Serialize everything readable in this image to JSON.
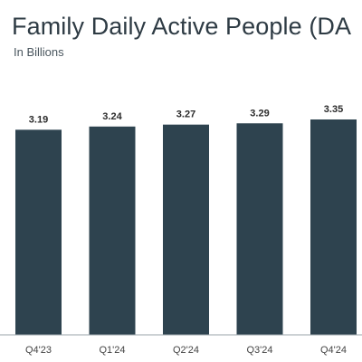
{
  "colors": {
    "bar": "#2e434f",
    "title": "#2e3b44"
  },
  "chart_data": {
    "type": "bar",
    "title": "Family Daily Active People (DA",
    "subtitle": "In Billions",
    "categories": [
      "Q4'23",
      "Q1'24",
      "Q2'24",
      "Q3'24",
      "Q4'24"
    ],
    "values": [
      3.19,
      3.24,
      3.27,
      3.29,
      3.35
    ],
    "data_labels": [
      "3.19",
      "3.24",
      "3.27",
      "3.29",
      "3.35"
    ],
    "xlabel": "",
    "ylabel": "",
    "ylim": [
      0,
      3.35
    ],
    "grid": false,
    "legend": "none"
  }
}
